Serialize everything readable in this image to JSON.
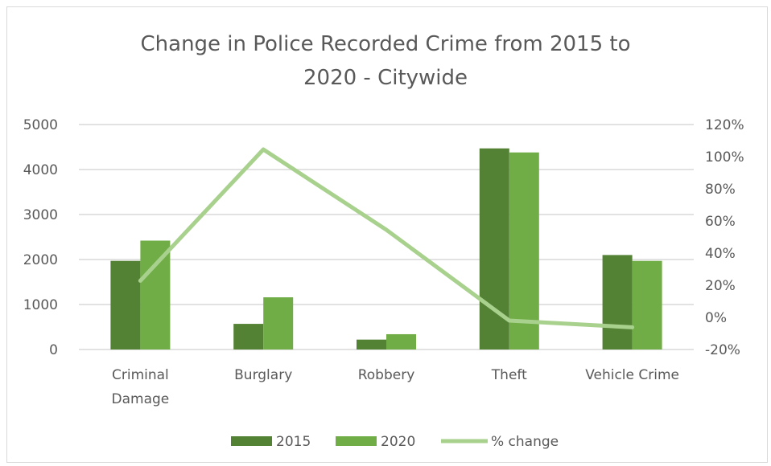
{
  "chart_data": {
    "type": "bar",
    "title": "Change in Police Recorded Crime from 2015 to\n2020 - Citywide",
    "categories": [
      "Criminal\nDamage",
      "Burglary",
      "Robbery",
      "Theft",
      "Vehicle Crime"
    ],
    "series": [
      {
        "name": "2015",
        "type": "bar",
        "axis": "left",
        "color": "#548235",
        "values": [
          1970,
          570,
          220,
          4470,
          2100
        ]
      },
      {
        "name": "2020",
        "type": "bar",
        "axis": "left",
        "color": "#70ad47",
        "values": [
          2420,
          1160,
          340,
          4380,
          1970
        ]
      },
      {
        "name": "% change",
        "type": "line",
        "axis": "right",
        "color": "#a9d18e",
        "values": [
          22.8,
          104.5,
          54.5,
          -2.0,
          -6.2
        ]
      }
    ],
    "y_left": {
      "min": 0,
      "max": 5000,
      "ticks": [
        0,
        1000,
        2000,
        3000,
        4000,
        5000
      ]
    },
    "y_right": {
      "min": -20,
      "max": 120,
      "ticks": [
        "-20%",
        "0%",
        "20%",
        "40%",
        "60%",
        "80%",
        "100%",
        "120%"
      ]
    },
    "grid": true,
    "legend_position": "bottom"
  }
}
